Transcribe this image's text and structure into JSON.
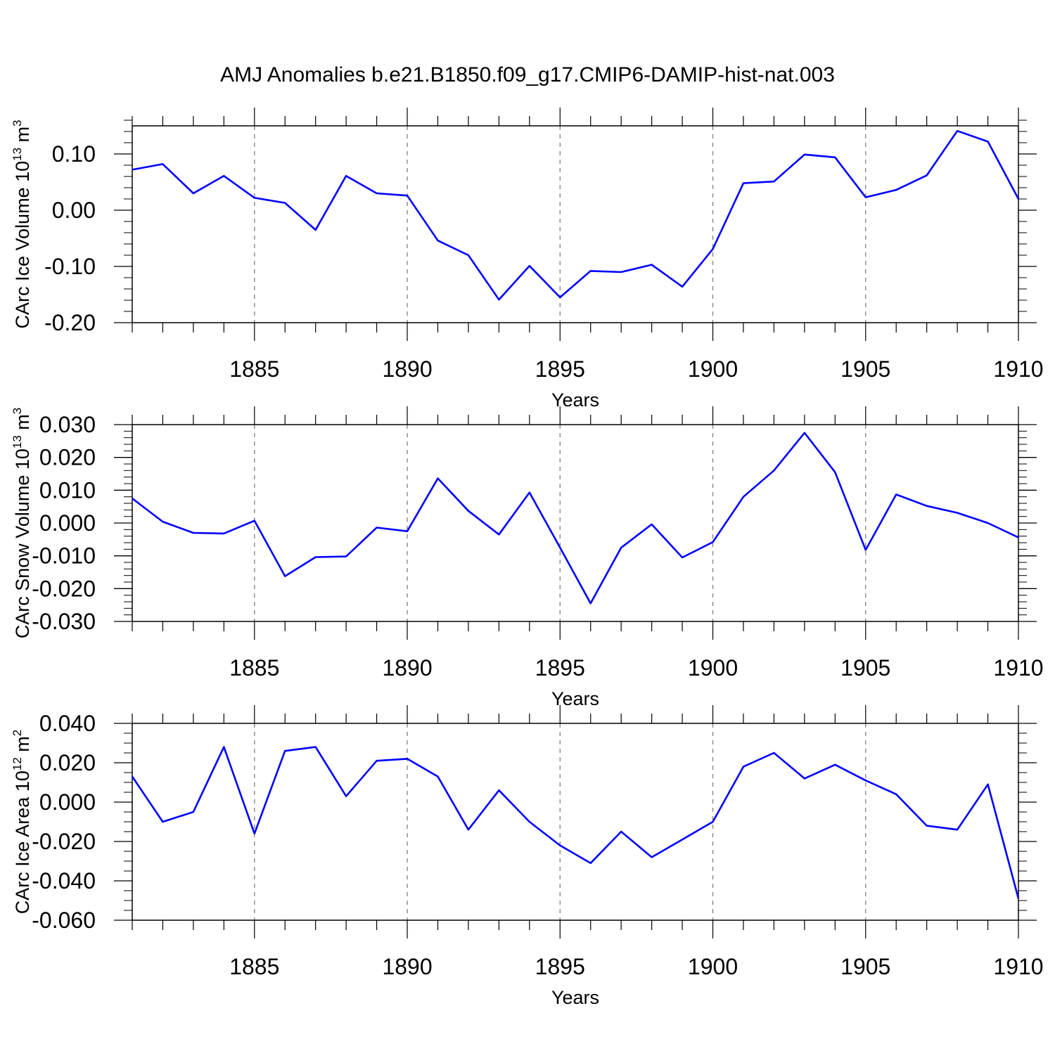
{
  "title": "AMJ Anomalies b.e21.B1850.f09_g17.CMIP6-DAMIP-hist-nat.003",
  "colors": {
    "line": "#0000ff",
    "axis": "#000000",
    "grid": "#808080"
  },
  "chart_data": [
    {
      "type": "line",
      "ylabel": "CArc Ice Volume 10",
      "ylabel_exp": "13",
      "ylabel_unit": " m",
      "ylabel_unit_exp": "3",
      "xlabel": "Years",
      "xlim": [
        1881,
        1910
      ],
      "ylim": [
        -0.2,
        0.15
      ],
      "yticks": [
        -0.2,
        -0.1,
        0.0,
        0.1
      ],
      "yticklabels": [
        "-0.20",
        "-0.10",
        "0.00",
        "0.10"
      ],
      "yminor": 0.02,
      "xticks": [
        1885,
        1890,
        1895,
        1900,
        1905,
        1910
      ],
      "xticklabels": [
        "1885",
        "1890",
        "1895",
        "1900",
        "1905",
        "1910"
      ],
      "grid": "dashed vertical at major x ticks",
      "x": [
        1881,
        1882,
        1883,
        1884,
        1885,
        1886,
        1887,
        1888,
        1889,
        1890,
        1891,
        1892,
        1893,
        1894,
        1895,
        1896,
        1897,
        1898,
        1899,
        1900,
        1901,
        1902,
        1903,
        1904,
        1905,
        1906,
        1907,
        1908,
        1909,
        1910
      ],
      "values": [
        0.072,
        0.082,
        0.03,
        0.061,
        0.022,
        0.013,
        -0.035,
        0.061,
        0.03,
        0.026,
        -0.054,
        -0.08,
        -0.159,
        -0.099,
        -0.155,
        -0.108,
        -0.11,
        -0.097,
        -0.136,
        -0.069,
        0.048,
        0.051,
        0.099,
        0.094,
        0.023,
        0.036,
        0.062,
        0.141,
        0.122,
        0.02
      ]
    },
    {
      "type": "line",
      "ylabel": "CArc Snow Volume 10",
      "ylabel_exp": "13",
      "ylabel_unit": " m",
      "ylabel_unit_exp": "3",
      "xlabel": "Years",
      "xlim": [
        1881,
        1910
      ],
      "ylim": [
        -0.03,
        0.03
      ],
      "yticks": [
        -0.03,
        -0.02,
        -0.01,
        0.0,
        0.01,
        0.02,
        0.03
      ],
      "yticklabels": [
        "-0.030",
        "-0.020",
        "-0.010",
        "0.000",
        "0.010",
        "0.020",
        "0.030"
      ],
      "yminor": 0.002,
      "xticks": [
        1885,
        1890,
        1895,
        1900,
        1905,
        1910
      ],
      "xticklabels": [
        "1885",
        "1890",
        "1895",
        "1900",
        "1905",
        "1910"
      ],
      "grid": "dashed vertical at major x ticks",
      "x": [
        1881,
        1882,
        1883,
        1884,
        1885,
        1886,
        1887,
        1888,
        1889,
        1890,
        1891,
        1892,
        1893,
        1894,
        1895,
        1896,
        1897,
        1898,
        1899,
        1900,
        1901,
        1902,
        1903,
        1904,
        1905,
        1906,
        1907,
        1908,
        1909,
        1910
      ],
      "values": [
        0.0075,
        0.0004,
        -0.003,
        -0.0032,
        0.0007,
        -0.0162,
        -0.0104,
        -0.0102,
        -0.0014,
        -0.0025,
        0.0136,
        0.0037,
        -0.0035,
        0.0093,
        -0.0075,
        -0.0245,
        -0.0075,
        -0.0004,
        -0.0105,
        -0.0058,
        0.008,
        0.016,
        0.0275,
        0.0155,
        -0.0082,
        0.0087,
        0.0052,
        0.0031,
        0.0,
        -0.0044
      ]
    },
    {
      "type": "line",
      "ylabel": "CArc Ice Area 10",
      "ylabel_exp": "12",
      "ylabel_unit": " m",
      "ylabel_unit_exp": "2",
      "xlabel": "Years",
      "xlim": [
        1881,
        1910
      ],
      "ylim": [
        -0.06,
        0.04
      ],
      "yticks": [
        -0.06,
        -0.04,
        -0.02,
        0.0,
        0.02,
        0.04
      ],
      "yticklabels": [
        "-0.060",
        "-0.040",
        "-0.020",
        "0.000",
        "0.020",
        "0.040"
      ],
      "yminor": 0.005,
      "xticks": [
        1885,
        1890,
        1895,
        1900,
        1905,
        1910
      ],
      "xticklabels": [
        "1885",
        "1890",
        "1895",
        "1900",
        "1905",
        "1910"
      ],
      "grid": "dashed vertical at major x ticks",
      "x": [
        1881,
        1882,
        1883,
        1884,
        1885,
        1886,
        1887,
        1888,
        1889,
        1890,
        1891,
        1892,
        1893,
        1894,
        1895,
        1896,
        1897,
        1898,
        1899,
        1900,
        1901,
        1902,
        1903,
        1904,
        1905,
        1906,
        1907,
        1908,
        1909,
        1910
      ],
      "values": [
        0.013,
        -0.01,
        -0.005,
        0.028,
        -0.016,
        0.026,
        0.028,
        0.003,
        0.021,
        0.022,
        0.013,
        -0.014,
        0.006,
        -0.01,
        -0.022,
        -0.031,
        -0.015,
        -0.028,
        -0.019,
        -0.01,
        0.018,
        0.025,
        0.012,
        0.019,
        0.011,
        0.004,
        -0.012,
        -0.014,
        0.009,
        -0.049
      ]
    }
  ]
}
